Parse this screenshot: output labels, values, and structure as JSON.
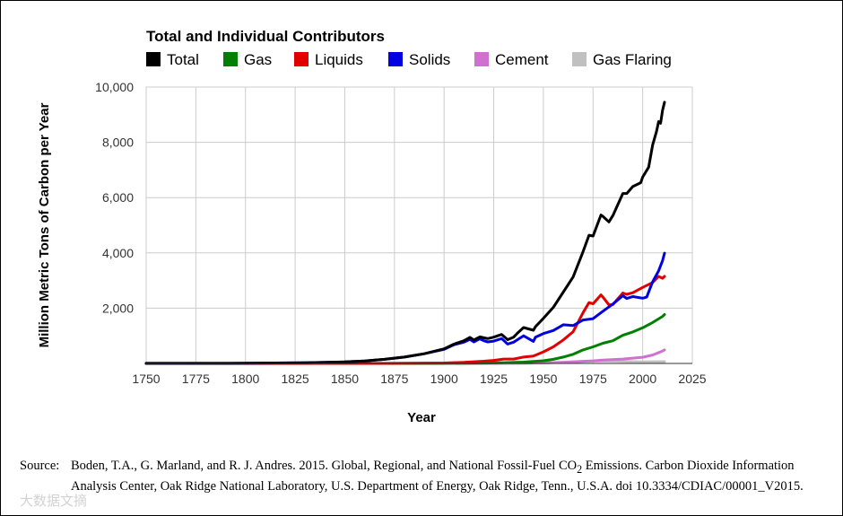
{
  "source": {
    "label": "Source:",
    "text_before_sub": "Boden, T.A., G. Marland, and R. J. Andres. 2015. Global, Regional, and National Fossil-Fuel CO",
    "subscript": "2",
    "text_after_sub": " Emissions. Carbon Dioxide Information Analysis Center, Oak Ridge National Laboratory, U.S. Department of Energy, Oak Ridge, Tenn., U.S.A. doi 10.3334/CDIAC/00001_V2015."
  },
  "watermark": "大数据文摘",
  "chart_data": {
    "type": "line",
    "title": "Total and Individual Contributors",
    "xlabel": "Year",
    "ylabel": "Million Metric Tons of Carbon per Year",
    "xlim": [
      1750,
      2025
    ],
    "ylim": [
      0,
      10000
    ],
    "xticks": [
      1750,
      1775,
      1800,
      1825,
      1850,
      1875,
      1900,
      1925,
      1950,
      1975,
      2000,
      2025
    ],
    "yticks": [
      2000,
      4000,
      6000,
      8000,
      10000
    ],
    "ytick_labels": [
      "2,000",
      "4,000",
      "6,000",
      "8,000",
      "10,000"
    ],
    "grid": true,
    "legend_position": "top",
    "series": [
      {
        "name": "Total",
        "color": "#000000",
        "x": [
          1750,
          1800,
          1830,
          1850,
          1860,
          1870,
          1880,
          1890,
          1900,
          1905,
          1910,
          1913,
          1915,
          1918,
          1920,
          1922,
          1925,
          1929,
          1932,
          1935,
          1937,
          1940,
          1945,
          1946,
          1950,
          1955,
          1960,
          1965,
          1970,
          1973,
          1975,
          1979,
          1980,
          1983,
          1985,
          1990,
          1992,
          1995,
          1999,
          2000,
          2003,
          2005,
          2007,
          2008,
          2009,
          2010,
          2011
        ],
        "y": [
          3,
          8,
          25,
          54,
          90,
          150,
          230,
          350,
          530,
          700,
          820,
          940,
          850,
          960,
          930,
          900,
          950,
          1050,
          860,
          950,
          1100,
          1300,
          1200,
          1330,
          1630,
          2030,
          2580,
          3130,
          4050,
          4640,
          4610,
          5370,
          5320,
          5120,
          5350,
          6150,
          6150,
          6400,
          6540,
          6740,
          7100,
          7900,
          8400,
          8750,
          8690,
          9160,
          9450
        ]
      },
      {
        "name": "Gas",
        "color": "#008000",
        "x": [
          1750,
          1885,
          1900,
          1920,
          1930,
          1940,
          1950,
          1955,
          1960,
          1965,
          1970,
          1975,
          1980,
          1985,
          1990,
          1995,
          2000,
          2005,
          2010,
          2011
        ],
        "y": [
          0,
          0,
          3,
          12,
          30,
          50,
          97,
          150,
          230,
          330,
          490,
          600,
          730,
          820,
          1020,
          1140,
          1290,
          1480,
          1700,
          1770
        ]
      },
      {
        "name": "Liquids",
        "color": "#e00000",
        "x": [
          1750,
          1870,
          1900,
          1910,
          1920,
          1925,
          1930,
          1935,
          1940,
          1945,
          1950,
          1955,
          1960,
          1965,
          1970,
          1973,
          1975,
          1979,
          1980,
          1983,
          1985,
          1990,
          1992,
          1995,
          2000,
          2005,
          2008,
          2010,
          2011
        ],
        "y": [
          0,
          0,
          16,
          40,
          80,
          110,
          160,
          160,
          230,
          270,
          420,
          600,
          850,
          1150,
          1840,
          2200,
          2160,
          2480,
          2400,
          2120,
          2130,
          2550,
          2500,
          2560,
          2750,
          2930,
          3150,
          3080,
          3150
        ]
      },
      {
        "name": "Solids",
        "color": "#0000e0",
        "x": [
          1750,
          1800,
          1830,
          1850,
          1860,
          1870,
          1880,
          1890,
          1900,
          1905,
          1910,
          1913,
          1915,
          1918,
          1920,
          1922,
          1925,
          1929,
          1932,
          1935,
          1937,
          1940,
          1945,
          1946,
          1950,
          1955,
          1960,
          1965,
          1970,
          1975,
          1980,
          1985,
          1990,
          1992,
          1995,
          2000,
          2002,
          2005,
          2008,
          2010,
          2011
        ],
        "y": [
          3,
          8,
          25,
          54,
          90,
          150,
          230,
          350,
          510,
          680,
          770,
          870,
          780,
          890,
          820,
          780,
          810,
          900,
          700,
          770,
          860,
          1000,
          800,
          950,
          1080,
          1190,
          1400,
          1370,
          1570,
          1620,
          1890,
          2150,
          2450,
          2350,
          2420,
          2360,
          2400,
          2950,
          3350,
          3720,
          3990
        ]
      },
      {
        "name": "Cement",
        "color": "#d070d0",
        "x": [
          1750,
          1925,
          1950,
          1960,
          1970,
          1975,
          1980,
          1990,
          2000,
          2005,
          2010,
          2011
        ],
        "y": [
          0,
          10,
          18,
          43,
          78,
          95,
          120,
          160,
          225,
          305,
          450,
          490
        ]
      },
      {
        "name": "Gas Flaring",
        "color": "#c0c0c0",
        "x": [
          1750,
          1940,
          1950,
          1960,
          1970,
          1975,
          1980,
          1990,
          2000,
          2010,
          2011
        ],
        "y": [
          0,
          0,
          23,
          39,
          70,
          80,
          90,
          70,
          60,
          66,
          66
        ]
      }
    ]
  }
}
